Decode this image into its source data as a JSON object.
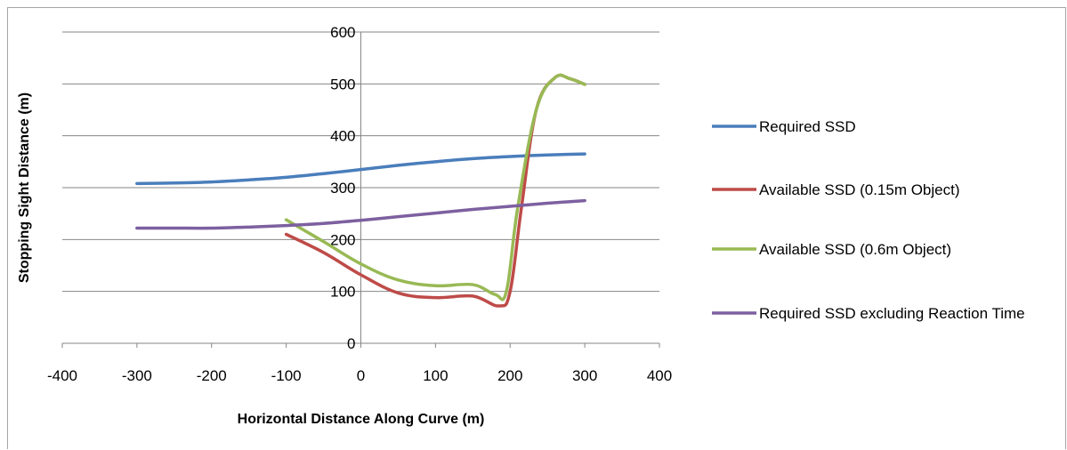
{
  "chart_data": {
    "type": "line",
    "smooth": true,
    "xlabel": "Horizontal Distance Along Curve (m)",
    "ylabel": "Stopping Sight Distance (m)",
    "xlim": [
      -400,
      400
    ],
    "ylim": [
      0,
      600
    ],
    "xticks": [
      -400,
      -300,
      -200,
      -100,
      0,
      100,
      200,
      300,
      400
    ],
    "yticks": [
      0,
      100,
      200,
      300,
      400,
      500,
      600
    ],
    "grid": "horizontal",
    "legend_position": "right",
    "series": [
      {
        "name": "Required SSD",
        "color": "#4a7ebb",
        "x": [
          -300,
          -250,
          -200,
          -150,
          -100,
          -50,
          0,
          50,
          100,
          150,
          200,
          250,
          300
        ],
        "y": [
          308,
          309,
          311,
          315,
          320,
          327,
          335,
          343,
          350,
          356,
          360,
          363,
          365
        ]
      },
      {
        "name": "Available SSD (0.15m Object)",
        "color": "#be4b48",
        "x": [
          -100,
          -50,
          0,
          50,
          100,
          150,
          185,
          200,
          215,
          235,
          260,
          280,
          300
        ],
        "y": [
          210,
          175,
          132,
          97,
          88,
          91,
          72,
          100,
          260,
          450,
          512,
          510,
          499
        ]
      },
      {
        "name": "Available SSD (0.6m Object)",
        "color": "#98b954",
        "x": [
          -100,
          -50,
          0,
          50,
          100,
          150,
          180,
          195,
          210,
          235,
          260,
          280,
          300
        ],
        "y": [
          238,
          196,
          153,
          122,
          111,
          113,
          94,
          100,
          260,
          450,
          512,
          510,
          499
        ]
      },
      {
        "name": "Required SSD excluding Reaction Time",
        "color": "#7d60a0",
        "x": [
          -300,
          -250,
          -200,
          -150,
          -100,
          -50,
          0,
          50,
          100,
          150,
          200,
          250,
          300
        ],
        "y": [
          222,
          222,
          222,
          224,
          227,
          231,
          237,
          244,
          251,
          258,
          264,
          270,
          275
        ]
      }
    ]
  }
}
